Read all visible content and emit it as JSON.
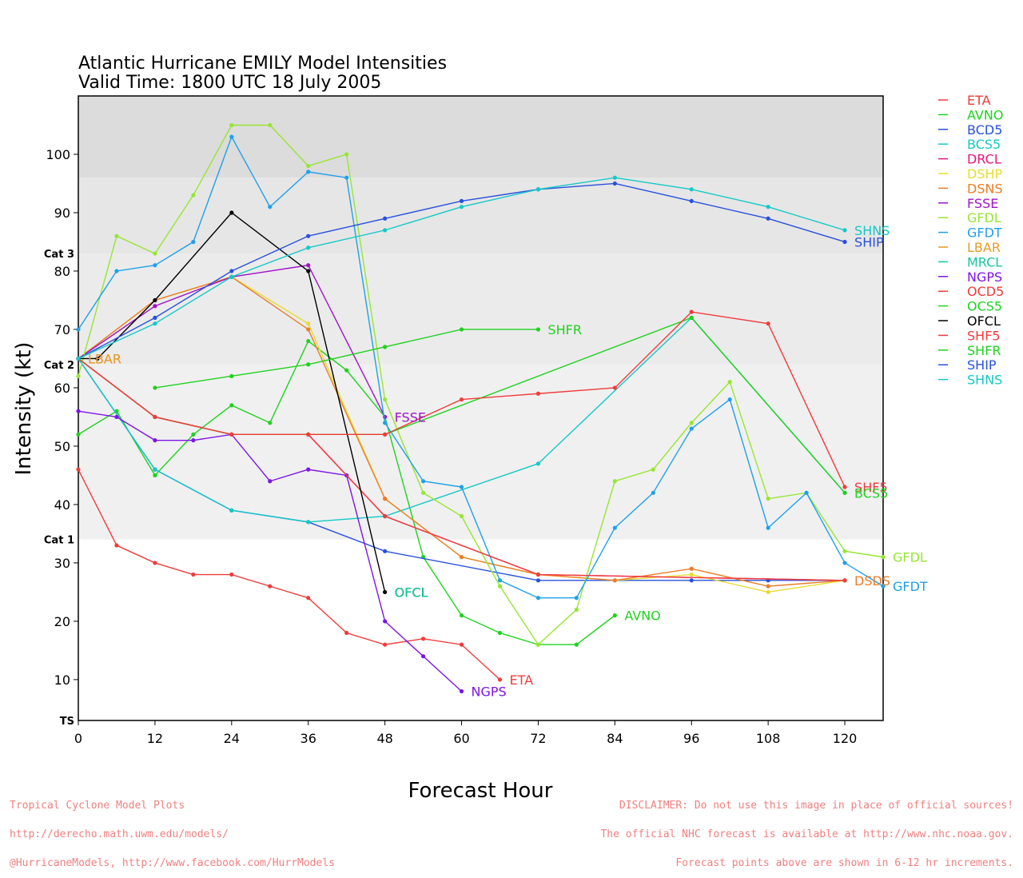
{
  "title_line1": "Atlantic Hurricane EMILY Model Intensities",
  "title_line2": "Valid Time: 1800 UTC 18 July 2005",
  "footer_left": [
    "Tropical Cyclone Model Plots",
    "http://derecho.math.uwm.edu/models/",
    "@HurricaneModels, http://www.facebook.com/HurrModels"
  ],
  "footer_right": [
    "DISCLAIMER: Do not use this image in place of official sources!",
    "The official NHC forecast is available at http://www.nhc.noaa.gov.",
    "Forecast points above are shown in 6-12 hr increments."
  ],
  "chart_data": {
    "type": "line",
    "xlabel": "Forecast Hour",
    "ylabel": "Intensity (kt)",
    "xlim": [
      0,
      126
    ],
    "ylim": [
      3,
      110
    ],
    "xticks": [
      0,
      12,
      24,
      36,
      48,
      60,
      72,
      84,
      96,
      108,
      120
    ],
    "yticks": [
      10,
      20,
      30,
      40,
      50,
      60,
      70,
      80,
      90,
      100
    ],
    "bands": [
      {
        "from": 96,
        "to": 110,
        "color": "#dcdcdc",
        "label": ""
      },
      {
        "from": 83,
        "to": 96,
        "color": "#e6e6e6",
        "label": "Cat 3"
      },
      {
        "from": 64,
        "to": 83,
        "color": "#ebebeb",
        "label": "Cat 2"
      },
      {
        "from": 34,
        "to": 64,
        "color": "#f0f0f0",
        "label": "Cat 1"
      },
      {
        "from": 3,
        "to": 34,
        "color": "#ffffff",
        "label": "TS"
      }
    ],
    "legend_position": "right",
    "series": [
      {
        "name": "ETA",
        "color": "#f03c3c",
        "end_label": "ETA",
        "points": [
          [
            0,
            46
          ],
          [
            6,
            33
          ],
          [
            12,
            30
          ],
          [
            18,
            28
          ],
          [
            24,
            28
          ],
          [
            30,
            26
          ],
          [
            36,
            24
          ],
          [
            42,
            18
          ],
          [
            48,
            16
          ],
          [
            54,
            17
          ],
          [
            60,
            16
          ],
          [
            66,
            10
          ]
        ]
      },
      {
        "name": "AVNO",
        "color": "#1ed21e",
        "end_label": "AVNO",
        "points": [
          [
            0,
            52
          ],
          [
            6,
            56
          ],
          [
            12,
            45
          ],
          [
            18,
            52
          ],
          [
            24,
            57
          ],
          [
            30,
            54
          ],
          [
            36,
            68
          ],
          [
            42,
            63
          ],
          [
            48,
            55
          ],
          [
            54,
            31
          ],
          [
            60,
            21
          ],
          [
            66,
            18
          ],
          [
            72,
            16
          ],
          [
            78,
            16
          ],
          [
            84,
            21
          ]
        ]
      },
      {
        "name": "BCD5",
        "color": "#2850dc",
        "end_label": "",
        "points": [
          [
            0,
            65
          ],
          [
            12,
            46
          ],
          [
            24,
            39
          ],
          [
            36,
            37
          ],
          [
            48,
            32
          ],
          [
            72,
            27
          ],
          [
            84,
            27
          ],
          [
            96,
            27
          ],
          [
            108,
            27
          ],
          [
            120,
            27
          ]
        ]
      },
      {
        "name": "BCS5",
        "color": "#14c8c8",
        "end_label": "",
        "points": [
          [
            0,
            65
          ],
          [
            12,
            46
          ],
          [
            24,
            39
          ],
          [
            36,
            37
          ],
          [
            48,
            38
          ],
          [
            72,
            47
          ],
          [
            96,
            72
          ],
          [
            120,
            42
          ]
        ]
      },
      {
        "name": "DRCL",
        "color": "#e6147a",
        "end_label": "",
        "points": [
          [
            0,
            65
          ],
          [
            12,
            55
          ],
          [
            24,
            52
          ],
          [
            36,
            52
          ],
          [
            48,
            38
          ],
          [
            72,
            28
          ],
          [
            120,
            27
          ]
        ]
      },
      {
        "name": "DSHP",
        "color": "#e6dc32",
        "end_label": "",
        "points": [
          [
            0,
            65
          ],
          [
            12,
            75
          ],
          [
            24,
            79
          ],
          [
            36,
            71
          ],
          [
            48,
            41
          ],
          [
            60,
            31
          ],
          [
            72,
            28
          ],
          [
            84,
            27
          ],
          [
            96,
            28
          ],
          [
            108,
            25
          ],
          [
            120,
            27
          ]
        ]
      },
      {
        "name": "DSNS",
        "color": "#eb7d28",
        "end_label": "",
        "points": [
          [
            0,
            65
          ],
          [
            12,
            75
          ],
          [
            24,
            79
          ],
          [
            36,
            70
          ],
          [
            48,
            41
          ],
          [
            60,
            31
          ],
          [
            72,
            28
          ],
          [
            84,
            27
          ],
          [
            96,
            29
          ],
          [
            108,
            26
          ],
          [
            120,
            27
          ]
        ]
      },
      {
        "name": "FSSE",
        "color": "#a014c8",
        "end_label": "FSSE",
        "points": [
          [
            0,
            65
          ],
          [
            12,
            74
          ],
          [
            24,
            79
          ],
          [
            36,
            81
          ],
          [
            48,
            55
          ]
        ]
      },
      {
        "name": "GFDL",
        "color": "#96e632",
        "end_label": "GFDL",
        "points": [
          [
            0,
            62
          ],
          [
            6,
            86
          ],
          [
            12,
            83
          ],
          [
            18,
            93
          ],
          [
            24,
            105
          ],
          [
            30,
            105
          ],
          [
            36,
            98
          ],
          [
            42,
            100
          ],
          [
            48,
            58
          ],
          [
            54,
            42
          ],
          [
            60,
            38
          ],
          [
            66,
            26
          ],
          [
            72,
            16
          ],
          [
            78,
            22
          ],
          [
            84,
            44
          ],
          [
            90,
            46
          ],
          [
            96,
            54
          ],
          [
            102,
            61
          ],
          [
            108,
            41
          ],
          [
            114,
            42
          ],
          [
            120,
            32
          ],
          [
            126,
            31
          ]
        ]
      },
      {
        "name": "GFDT",
        "color": "#1ea0eb",
        "end_label": "GFDT",
        "points": [
          [
            0,
            70
          ],
          [
            6,
            80
          ],
          [
            12,
            81
          ],
          [
            18,
            85
          ],
          [
            24,
            103
          ],
          [
            30,
            91
          ],
          [
            36,
            97
          ],
          [
            42,
            96
          ],
          [
            48,
            54
          ],
          [
            54,
            44
          ],
          [
            60,
            43
          ],
          [
            66,
            27
          ],
          [
            72,
            24
          ],
          [
            78,
            24
          ],
          [
            84,
            36
          ],
          [
            90,
            42
          ],
          [
            96,
            53
          ],
          [
            102,
            58
          ],
          [
            108,
            36
          ],
          [
            114,
            42
          ],
          [
            120,
            30
          ],
          [
            126,
            26
          ]
        ]
      },
      {
        "name": "LBAR",
        "color": "#e69b28",
        "end_label": "LBAR",
        "points": [
          [
            0,
            65
          ]
        ]
      },
      {
        "name": "MRCL",
        "color": "#14c8a0",
        "end_label": "",
        "points": [
          [
            0,
            65
          ]
        ]
      },
      {
        "name": "NGPS",
        "color": "#7d14e6",
        "end_label": "NGPS",
        "points": [
          [
            0,
            56
          ],
          [
            6,
            55
          ],
          [
            12,
            51
          ],
          [
            18,
            51
          ],
          [
            24,
            52
          ],
          [
            30,
            44
          ],
          [
            36,
            46
          ],
          [
            42,
            45
          ],
          [
            48,
            20
          ],
          [
            54,
            14
          ],
          [
            60,
            8
          ]
        ]
      },
      {
        "name": "OCD5",
        "color": "#f03c3c",
        "end_label": "",
        "points": [
          [
            0,
            65
          ],
          [
            12,
            55
          ],
          [
            24,
            52
          ],
          [
            36,
            52
          ],
          [
            48,
            38
          ],
          [
            72,
            28
          ],
          [
            120,
            27
          ]
        ]
      },
      {
        "name": "OCS5",
        "color": "#1ed21e",
        "end_label": "",
        "points": [
          [
            0,
            65
          ],
          [
            12,
            55
          ],
          [
            24,
            52
          ],
          [
            36,
            52
          ],
          [
            48,
            52
          ],
          [
            96,
            72
          ],
          [
            120,
            42
          ]
        ]
      },
      {
        "name": "OFCL",
        "color": "#000000",
        "end_label": "OFCL",
        "points": [
          [
            0,
            65
          ],
          [
            3,
            65
          ],
          [
            12,
            75
          ],
          [
            24,
            90
          ],
          [
            36,
            80
          ],
          [
            48,
            25
          ]
        ]
      },
      {
        "name": "SHF5",
        "color": "#f03c3c",
        "end_label": "SHF5",
        "points": [
          [
            0,
            65
          ],
          [
            12,
            55
          ],
          [
            24,
            52
          ],
          [
            36,
            52
          ],
          [
            48,
            52
          ],
          [
            60,
            58
          ],
          [
            72,
            59
          ],
          [
            84,
            60
          ],
          [
            96,
            73
          ],
          [
            108,
            71
          ],
          [
            120,
            43
          ]
        ]
      },
      {
        "name": "SHFR",
        "color": "#1ed21e",
        "end_label": "SHFR",
        "points": [
          [
            12,
            60
          ],
          [
            24,
            62
          ],
          [
            36,
            64
          ],
          [
            48,
            67
          ],
          [
            60,
            70
          ],
          [
            72,
            70
          ]
        ]
      },
      {
        "name": "SHIP",
        "color": "#2850dc",
        "end_label": "SHIP",
        "points": [
          [
            0,
            65
          ],
          [
            12,
            72
          ],
          [
            24,
            80
          ],
          [
            36,
            86
          ],
          [
            48,
            89
          ],
          [
            60,
            92
          ],
          [
            72,
            94
          ],
          [
            84,
            95
          ],
          [
            96,
            92
          ],
          [
            108,
            89
          ],
          [
            120,
            85
          ]
        ]
      },
      {
        "name": "SHNS",
        "color": "#14c8c8",
        "end_label": "SHNS",
        "points": [
          [
            0,
            65
          ],
          [
            12,
            71
          ],
          [
            24,
            79
          ],
          [
            36,
            84
          ],
          [
            48,
            87
          ],
          [
            60,
            91
          ],
          [
            72,
            94
          ],
          [
            84,
            96
          ],
          [
            96,
            94
          ],
          [
            108,
            91
          ],
          [
            120,
            87
          ]
        ]
      }
    ],
    "extra_end_labels": [
      {
        "text": "DSDS",
        "color": "#eb7d28",
        "at": [
          120,
          27
        ]
      },
      {
        "text": "BCS5",
        "color": "#1ed21e",
        "at": [
          120,
          42
        ]
      },
      {
        "text": "LBAR",
        "color": "#e69b28",
        "at": [
          0,
          65
        ]
      },
      {
        "text": "OFCL",
        "color": "#14c8a0",
        "at": [
          48,
          25
        ]
      }
    ]
  }
}
